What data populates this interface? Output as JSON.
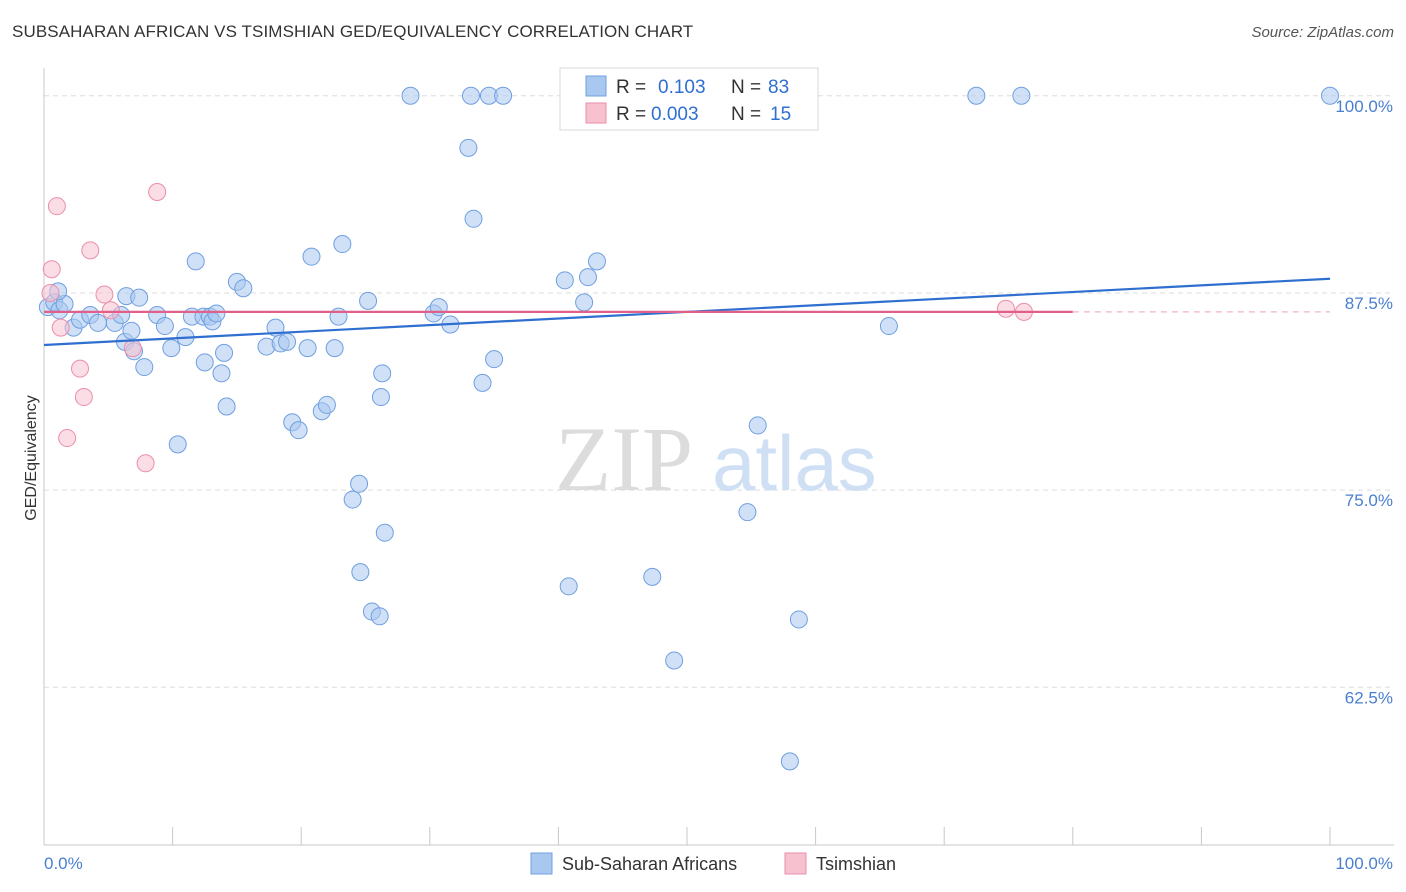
{
  "title": "SUBSAHARAN AFRICAN VS TSIMSHIAN GED/EQUIVALENCY CORRELATION CHART",
  "source": "Source: ZipAtlas.com",
  "watermark": {
    "zip": "ZIP",
    "atlas": "atlas"
  },
  "chart_data": {
    "type": "scatter",
    "ylabel": "GED/Equivalency",
    "x_tick_labels": [
      "0.0%",
      "100.0%"
    ],
    "y_tick_labels": [
      "100.0%",
      "87.5%",
      "75.0%",
      "62.5%"
    ],
    "y_ticks": [
      100.0,
      87.5,
      75.0,
      62.5
    ],
    "xlim": [
      0,
      100
    ],
    "ylim": [
      52.5,
      101
    ],
    "grid": "horizontal dashed",
    "legend_position": "top-center",
    "legend": {
      "r_label": "R =",
      "n_label": "N =",
      "rows": [
        {
          "r": "0.103",
          "n": "83",
          "color": "#a9c8f0",
          "stroke": "#6f9fe0"
        },
        {
          "r": "0.003",
          "n": "15",
          "color": "#f7c1d0",
          "stroke": "#ea8eab"
        }
      ]
    },
    "series": [
      {
        "name": "Sub-Saharan Africans",
        "color": "#a9c8f0",
        "stroke": "#6f9fe0",
        "line_color": "#2f6fd0",
        "trend": {
          "x0": 0,
          "y0": 84.2,
          "x1": 100,
          "y1": 88.4
        },
        "points": [
          [
            0.3,
            86.6
          ],
          [
            0.8,
            86.9
          ],
          [
            1.2,
            86.4
          ],
          [
            1.6,
            86.8
          ],
          [
            2.3,
            85.3
          ],
          [
            2.8,
            85.8
          ],
          [
            3.6,
            86.1
          ],
          [
            4.2,
            85.6
          ],
          [
            5.5,
            85.6
          ],
          [
            6.0,
            86.1
          ],
          [
            6.3,
            84.4
          ],
          [
            7.0,
            83.8
          ],
          [
            6.8,
            85.1
          ],
          [
            6.4,
            87.3
          ],
          [
            7.4,
            87.2
          ],
          [
            7.8,
            82.8
          ],
          [
            8.8,
            86.1
          ],
          [
            9.4,
            85.4
          ],
          [
            9.9,
            84.0
          ],
          [
            10.4,
            77.9
          ],
          [
            11.0,
            84.7
          ],
          [
            11.5,
            86.0
          ],
          [
            12.4,
            86.0
          ],
          [
            12.5,
            83.1
          ],
          [
            12.9,
            86.0
          ],
          [
            13.1,
            85.7
          ],
          [
            13.4,
            86.2
          ],
          [
            11.8,
            89.5
          ],
          [
            13.8,
            82.4
          ],
          [
            14.2,
            80.3
          ],
          [
            14.0,
            83.7
          ],
          [
            15.0,
            88.2
          ],
          [
            15.5,
            87.8
          ],
          [
            17.3,
            84.1
          ],
          [
            18.0,
            85.3
          ],
          [
            18.4,
            84.3
          ],
          [
            18.9,
            84.4
          ],
          [
            19.3,
            79.3
          ],
          [
            19.8,
            78.8
          ],
          [
            20.5,
            84.0
          ],
          [
            20.8,
            89.8
          ],
          [
            21.6,
            80.0
          ],
          [
            22.0,
            80.4
          ],
          [
            22.6,
            84.0
          ],
          [
            22.9,
            86.0
          ],
          [
            23.2,
            90.6
          ],
          [
            24.5,
            75.4
          ],
          [
            24.0,
            74.4
          ],
          [
            24.6,
            69.8
          ],
          [
            25.2,
            87.0
          ],
          [
            25.5,
            67.3
          ],
          [
            26.1,
            67.0
          ],
          [
            26.5,
            72.3
          ],
          [
            26.2,
            80.9
          ],
          [
            26.3,
            82.4
          ],
          [
            28.5,
            100.0
          ],
          [
            30.3,
            86.2
          ],
          [
            30.7,
            86.6
          ],
          [
            31.6,
            85.5
          ],
          [
            33.0,
            96.7
          ],
          [
            33.2,
            100.0
          ],
          [
            33.4,
            92.2
          ],
          [
            34.1,
            81.8
          ],
          [
            34.6,
            100.0
          ],
          [
            35.0,
            83.3
          ],
          [
            35.7,
            100.0
          ],
          [
            40.5,
            88.3
          ],
          [
            40.8,
            68.9
          ],
          [
            42.3,
            88.5
          ],
          [
            42.0,
            86.9
          ],
          [
            43.0,
            89.5
          ],
          [
            45.7,
            100.0
          ],
          [
            47.3,
            69.5
          ],
          [
            49.0,
            64.2
          ],
          [
            54.7,
            73.6
          ],
          [
            55.5,
            79.1
          ],
          [
            58.0,
            57.8
          ],
          [
            58.7,
            66.8
          ],
          [
            65.7,
            85.4
          ],
          [
            72.5,
            100.0
          ],
          [
            76.0,
            100.0
          ],
          [
            100.0,
            100.0
          ],
          [
            1.1,
            87.6
          ]
        ]
      },
      {
        "name": "Tsimshian",
        "color": "#f7c1d0",
        "stroke": "#ea8eab",
        "line_color": "#e0608a",
        "trend": {
          "x0": 0,
          "y0": 86.3,
          "x1": 80,
          "y1": 86.3
        },
        "points": [
          [
            0.5,
            87.5
          ],
          [
            0.6,
            89.0
          ],
          [
            1.0,
            93.0
          ],
          [
            1.3,
            85.3
          ],
          [
            2.8,
            82.7
          ],
          [
            3.1,
            80.9
          ],
          [
            1.8,
            78.3
          ],
          [
            3.6,
            90.2
          ],
          [
            4.7,
            87.4
          ],
          [
            5.2,
            86.4
          ],
          [
            7.9,
            76.7
          ],
          [
            8.8,
            93.9
          ],
          [
            6.9,
            84.0
          ],
          [
            74.8,
            86.5
          ],
          [
            76.2,
            86.3
          ]
        ]
      }
    ]
  }
}
